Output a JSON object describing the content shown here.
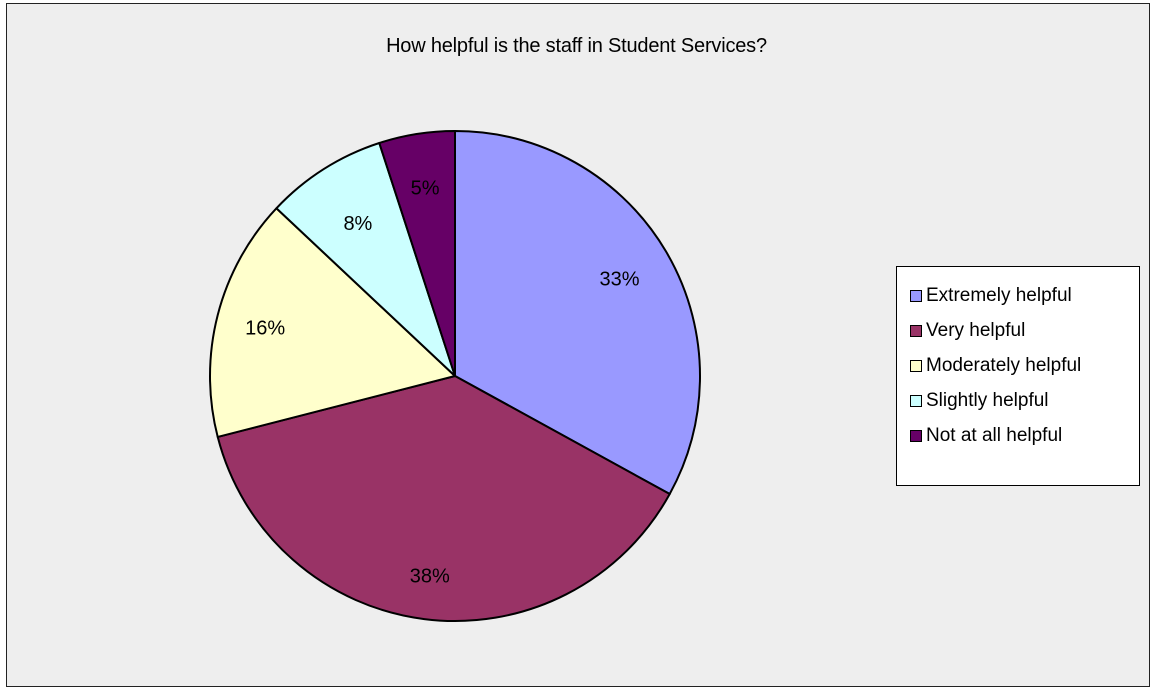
{
  "chart_data": {
    "type": "pie",
    "title": "How helpful is the staff in Student Services?",
    "categories": [
      "Extremely helpful",
      "Very helpful",
      "Moderately helpful",
      "Slightly helpful",
      "Not at all helpful"
    ],
    "values": [
      33,
      38,
      16,
      8,
      5
    ],
    "labels": [
      "33%",
      "38%",
      "16%",
      "8%",
      "5%"
    ],
    "colors": [
      "#9999ff",
      "#993366",
      "#ffffcc",
      "#ccffff",
      "#660066"
    ],
    "legend_position": "right",
    "start_angle": "12 o'clock",
    "direction": "clockwise"
  }
}
